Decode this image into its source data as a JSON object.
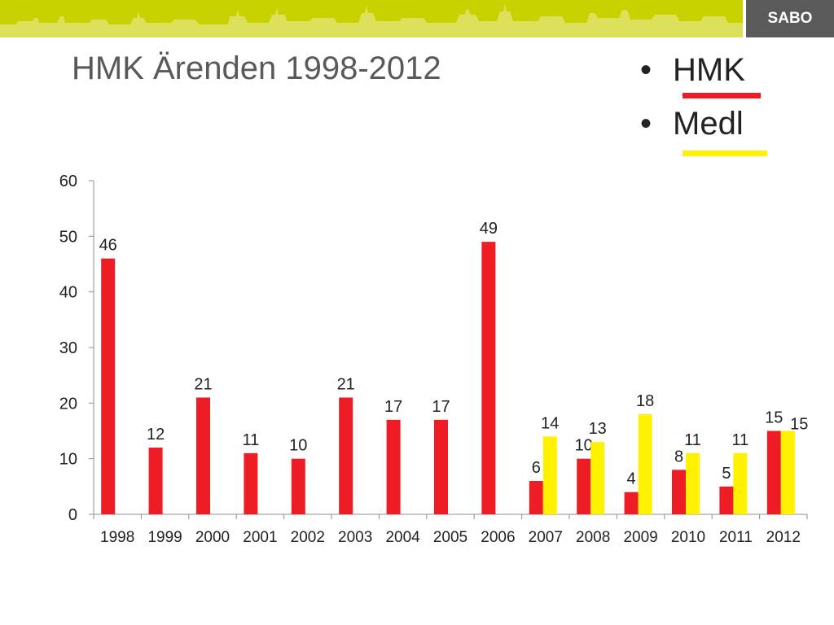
{
  "header": {
    "logo_text": "SABO",
    "banner_color": "#c9d200",
    "logo_bg": "#5a5a5a"
  },
  "slide": {
    "title": "HMK Ärenden 1998-2012"
  },
  "legend": [
    {
      "label": "HMK",
      "color": "#ee1c25"
    },
    {
      "label": "Medl",
      "color": "#fff200"
    }
  ],
  "chart_data": {
    "type": "bar",
    "title": "",
    "xlabel": "",
    "ylabel": "",
    "ylim": [
      0,
      60
    ],
    "yticks": [
      "0",
      "10",
      "20",
      "30",
      "40",
      "50",
      "60"
    ],
    "grid": false,
    "legend_position": "top-right",
    "categories": [
      "1998",
      "1999",
      "2000",
      "2001",
      "2002",
      "2003",
      "2004",
      "2005",
      "2006",
      "2007",
      "2008",
      "2009",
      "2010",
      "2011",
      "2012"
    ],
    "series": [
      {
        "name": "HMK",
        "color": "#ee1c25",
        "values": [
          46,
          12,
          21,
          11,
          10,
          21,
          17,
          17,
          49,
          6,
          10,
          4,
          8,
          5,
          15
        ]
      },
      {
        "name": "Medl",
        "color": "#fff200",
        "values": [
          null,
          null,
          null,
          null,
          null,
          null,
          null,
          null,
          null,
          14,
          13,
          18,
          11,
          11,
          15
        ]
      }
    ]
  }
}
